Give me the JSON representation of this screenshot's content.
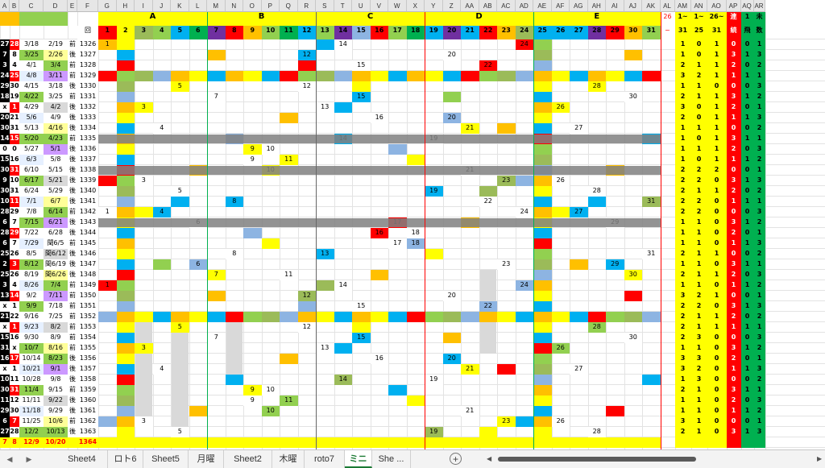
{
  "colors": {
    "yellow": "#ffff00",
    "red": "#ff0000",
    "green": "#00b050",
    "orange": "#ffc000",
    "gray": "#808080",
    "lightgray": "#d9d9d9",
    "black": "#000000",
    "blue": "#00b0f0",
    "purple": "#7030a0",
    "lime": "#92d050",
    "olive": "#9bbb59",
    "steel": "#8db4e2",
    "pink": "#ff99cc",
    "teal": "#00b0a0"
  },
  "columns": [
    "A",
    "B",
    "C",
    "D",
    "E",
    "F",
    "G",
    "H",
    "I",
    "J",
    "K",
    "L",
    "M",
    "N",
    "O",
    "P",
    "Q",
    "R",
    "S",
    "T",
    "U",
    "V",
    "W",
    "X",
    "Y",
    "Z",
    "AA",
    "AB",
    "AC",
    "AD",
    "AE",
    "AF",
    "AG",
    "AH",
    "AI",
    "AJ",
    "AK",
    "AL",
    "AM",
    "AN",
    "AO",
    "AP",
    "AQ",
    "AR"
  ],
  "groups": [
    {
      "label": "A",
      "nums": [
        "1",
        "2",
        "3",
        "4",
        "5",
        "6"
      ]
    },
    {
      "label": "B",
      "nums": [
        "7",
        "8",
        "9",
        "10",
        "11",
        "12"
      ]
    },
    {
      "label": "C",
      "nums": [
        "13",
        "14",
        "15",
        "16",
        "17",
        "18"
      ]
    },
    {
      "label": "D",
      "nums": [
        "19",
        "20",
        "21",
        "22",
        "23",
        "24"
      ]
    },
    {
      "label": "E",
      "nums": [
        "25",
        "26",
        "27",
        "28",
        "29",
        "30",
        "31"
      ]
    }
  ],
  "header_row1": {
    "al": "26",
    "am": "1~",
    "an": "1~",
    "ao": "26~",
    "ap": "連",
    "aq": "1",
    "ar": "未"
  },
  "header_row2": {
    "f": "回",
    "al": "~",
    "am": "31",
    "an": "25",
    "ao": "31",
    "ap": "続",
    "aq": "飛",
    "ar": "数"
  },
  "rows": [
    [
      "27",
      "28",
      "3/18",
      "2/19",
      "前",
      "1326"
    ],
    [
      "7",
      "8",
      "3/25",
      "2/26",
      "後",
      "1327"
    ],
    [
      "3",
      "4",
      "4/1",
      "3/4",
      "前",
      "1328"
    ],
    [
      "24",
      "25",
      "4/8",
      "3/11",
      "前",
      "1329"
    ],
    [
      "29",
      "30",
      "4/15",
      "3/18",
      "後",
      "1330"
    ],
    [
      "18",
      "19",
      "4/22",
      "3/25",
      "前",
      "1331"
    ],
    [
      "x",
      "1",
      "4/29",
      "4/2",
      "後",
      "1332"
    ],
    [
      "20",
      "21",
      "5/6",
      "4/9",
      "後",
      "1333"
    ],
    [
      "30",
      "31",
      "5/13",
      "4/16",
      "後",
      "1334"
    ],
    [
      "14",
      "15",
      "5/20",
      "4/23",
      "前",
      "1335"
    ],
    [
      "0",
      "0",
      "5/27",
      "5/1",
      "後",
      "1336"
    ],
    [
      "15",
      "16",
      "6/3",
      "5/8",
      "後",
      "1337"
    ],
    [
      "30",
      "31",
      "6/10",
      "5/15",
      "後",
      "1338"
    ],
    [
      "9",
      "10",
      "6/17",
      "5/21",
      "後",
      "1339"
    ],
    [
      "30",
      "31",
      "6/24",
      "5/29",
      "後",
      "1340"
    ],
    [
      "10",
      "11",
      "7/1",
      "6/7",
      "後",
      "1341"
    ],
    [
      "28",
      "29",
      "7/8",
      "6/14",
      "前",
      "1342"
    ],
    [
      "6",
      "7",
      "7/15",
      "6/21",
      "後",
      "1343"
    ],
    [
      "28",
      "29",
      "7/22",
      "6/28",
      "後",
      "1344"
    ],
    [
      "6",
      "7",
      "7/29",
      "閏6/5",
      "前",
      "1345"
    ],
    [
      "25",
      "26",
      "8/5",
      "閏6/12",
      "後",
      "1346"
    ],
    [
      "2",
      "3",
      "8/12",
      "閏6/19",
      "後",
      "1347"
    ],
    [
      "25",
      "26",
      "8/19",
      "閏6/26",
      "後",
      "1348"
    ],
    [
      "3",
      "4",
      "8/26",
      "7/4",
      "前",
      "1349"
    ],
    [
      "13",
      "14",
      "9/2",
      "7/11",
      "前",
      "1350"
    ],
    [
      "x",
      "1",
      "9/9",
      "7/18",
      "前",
      "1351"
    ],
    [
      "21",
      "22",
      "9/16",
      "7/25",
      "前",
      "1352"
    ],
    [
      "x",
      "1",
      "9/23",
      "8/2",
      "前",
      "1353"
    ],
    [
      "15",
      "16",
      "9/30",
      "8/9",
      "前",
      "1354"
    ],
    [
      "31",
      "x",
      "10/7",
      "8/16",
      "前",
      "1355"
    ],
    [
      "16",
      "17",
      "10/14",
      "8/23",
      "後",
      "1356"
    ],
    [
      "x",
      "1",
      "10/21",
      "9/1",
      "後",
      "1357"
    ],
    [
      "10",
      "11",
      "10/28",
      "9/8",
      "後",
      "1358"
    ],
    [
      "30",
      "31",
      "11/4",
      "9/15",
      "前",
      "1359"
    ],
    [
      "11",
      "12",
      "11/11",
      "9/22",
      "後",
      "1360"
    ],
    [
      "29",
      "30",
      "11/18",
      "9/29",
      "後",
      "1361"
    ],
    [
      "6",
      "7",
      "11/25",
      "10/6",
      "前",
      "1362"
    ],
    [
      "27",
      "28",
      "12/2",
      "10/13",
      "後",
      "1363"
    ],
    [
      "7",
      "8",
      "12/9",
      "10/20",
      "",
      "1364"
    ]
  ],
  "tabs": [
    "Sheet4",
    "ロト6",
    "Sheet5",
    "月曜",
    "Sheet2",
    "木曜",
    "roto7",
    "ミニ",
    "She ..."
  ],
  "add_sheet": "+",
  "nav_left": "◀",
  "nav_right": "▶",
  "scroll_left": "◀",
  "scroll_right": "▶"
}
